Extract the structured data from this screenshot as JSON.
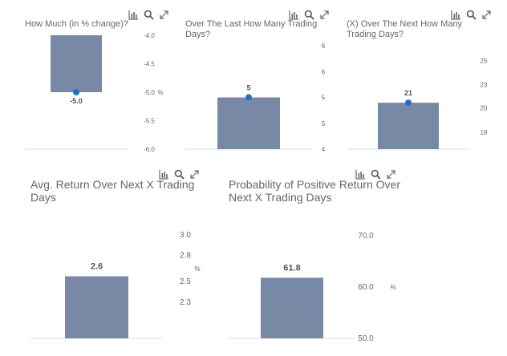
{
  "colors": {
    "bar": "#7889a6",
    "marker": "#1f6fd1",
    "axis": "#dcdcdc",
    "icon": "#666666"
  },
  "tool_icons": [
    "chart-toggle-icon",
    "search-icon",
    "expand-icon"
  ],
  "chart_data": [
    {
      "type": "bar",
      "title": "How Much (in % change)?",
      "categories": [
        ""
      ],
      "values": [
        -5.0
      ],
      "data_label": "-5.0",
      "marker": true,
      "ylim": [
        -6.0,
        -4.0
      ],
      "yticks": [
        "-4.0",
        "-4.5",
        "-5.0",
        "-5.5",
        "-6.0"
      ],
      "ytick_values": [
        -4.0,
        -4.5,
        -5.0,
        -5.5,
        -6.0
      ],
      "baseline": -4.0,
      "yunit": "%"
    },
    {
      "type": "bar",
      "title": "Over The Last How Many Trading Days?",
      "categories": [
        ""
      ],
      "values": [
        5
      ],
      "data_label": "5",
      "marker": true,
      "ylim": [
        4,
        6
      ],
      "yticks": [
        "6",
        "6",
        "5",
        "5",
        "4"
      ],
      "ytick_values": [
        6,
        5.5,
        5,
        4.5,
        4
      ],
      "baseline": 4,
      "yunit": ""
    },
    {
      "type": "bar",
      "title": "(X) Over The Next How Many Trading Days?",
      "categories": [
        ""
      ],
      "values": [
        21
      ],
      "data_label": "21",
      "marker": true,
      "ylim": [
        16.6,
        26.1
      ],
      "yticks": [
        "25",
        "23",
        "20",
        "18"
      ],
      "ytick_values": [
        25,
        22.7,
        20.5,
        18.2
      ],
      "baseline": 16.6,
      "yunit": ""
    },
    {
      "type": "bar",
      "title": "Avg. Return Over Next X Trading Days",
      "categories": [
        ""
      ],
      "values": [
        2.6
      ],
      "data_label": "2.6",
      "marker": false,
      "ylim": [
        2.0,
        3.1
      ],
      "yticks": [
        "3.0",
        "2.8",
        "2.5",
        "2.3"
      ],
      "ytick_values": [
        3.0,
        2.8,
        2.55,
        2.35
      ],
      "baseline": 2.0,
      "yunit": "%"
    },
    {
      "type": "bar",
      "title": "Probability of Positive Return Over Next X Trading Days",
      "categories": [
        ""
      ],
      "values": [
        61.8
      ],
      "data_label": "61.8",
      "marker": false,
      "ylim": [
        50.0,
        72.0
      ],
      "yticks": [
        "70.0",
        "60.0",
        "50.0"
      ],
      "ytick_values": [
        70.0,
        60.0,
        50.0
      ],
      "baseline": 50.0,
      "yunit": "%"
    }
  ]
}
